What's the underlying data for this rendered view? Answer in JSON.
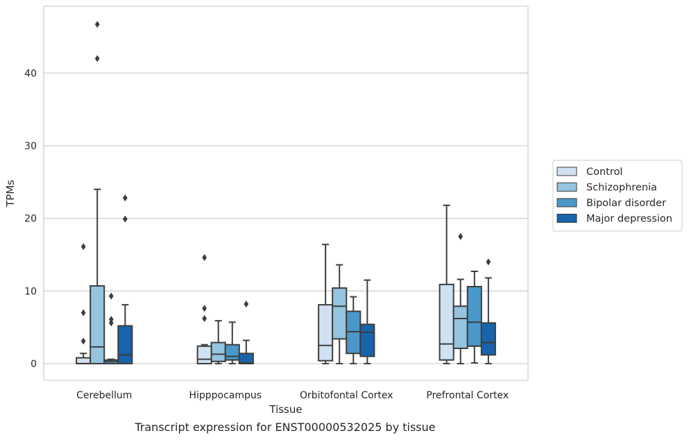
{
  "chart_data": {
    "type": "box",
    "xlabel": "Tissue",
    "ylabel": "TPMs",
    "caption": "Transcript expression for ENST00000532025 by tissue",
    "ylim": [
      -2.3,
      49.2
    ],
    "yticks": [
      0,
      10,
      20,
      30,
      40
    ],
    "grid": "horizontal",
    "legend_position": "right",
    "categories": [
      "Cerebellum",
      "Hipppocampus",
      "Orbitofontal Cortex",
      "Prefrontal Cortex"
    ],
    "series": [
      {
        "name": "Control",
        "color": "#d0e1f2",
        "boxes": [
          {
            "whislo": 0,
            "q1": 0,
            "med": 0,
            "q3": 0.8,
            "whishi": 1.4,
            "fliers": [
              3.1,
              7.0,
              16.1
            ]
          },
          {
            "whislo": 0,
            "q1": 0,
            "med": 0.6,
            "q3": 2.4,
            "whishi": 2.6,
            "fliers": [
              6.2,
              7.6,
              14.6
            ]
          },
          {
            "whislo": 0,
            "q1": 0.4,
            "med": 2.5,
            "q3": 8.1,
            "whishi": 16.4,
            "fliers": []
          },
          {
            "whislo": 0,
            "q1": 0.5,
            "med": 2.7,
            "q3": 10.9,
            "whishi": 21.8,
            "fliers": []
          }
        ]
      },
      {
        "name": "Schizophrenia",
        "color": "#94c4df",
        "boxes": [
          {
            "whislo": 0,
            "q1": 0,
            "med": 2.3,
            "q3": 10.7,
            "whishi": 24.0,
            "fliers": [
              42.0,
              46.7
            ]
          },
          {
            "whislo": 0,
            "q1": 0.3,
            "med": 1.3,
            "q3": 2.9,
            "whishi": 5.9,
            "fliers": []
          },
          {
            "whislo": 0,
            "q1": 3.4,
            "med": 7.9,
            "q3": 10.4,
            "whishi": 13.6,
            "fliers": []
          },
          {
            "whislo": 0,
            "q1": 2.1,
            "med": 6.2,
            "q3": 7.9,
            "whishi": 11.6,
            "fliers": [
              17.5
            ]
          }
        ]
      },
      {
        "name": "Bipolar disorder",
        "color": "#4a98c9",
        "boxes": [
          {
            "whislo": 0,
            "q1": 0,
            "med": 0.3,
            "q3": 0.5,
            "whishi": 0.6,
            "fliers": [
              5.6,
              6.1,
              9.3
            ]
          },
          {
            "whislo": 0,
            "q1": 0.5,
            "med": 1.0,
            "q3": 2.6,
            "whishi": 5.7,
            "fliers": []
          },
          {
            "whislo": 0,
            "q1": 1.4,
            "med": 4.4,
            "q3": 7.2,
            "whishi": 9.2,
            "fliers": []
          },
          {
            "whislo": 0.1,
            "q1": 2.4,
            "med": 5.7,
            "q3": 10.6,
            "whishi": 12.7,
            "fliers": []
          }
        ]
      },
      {
        "name": "Major depression",
        "color": "#1764ab",
        "boxes": [
          {
            "whislo": 0,
            "q1": 0,
            "med": 1.2,
            "q3": 5.2,
            "whishi": 8.1,
            "fliers": [
              19.9,
              22.8
            ]
          },
          {
            "whislo": 0,
            "q1": 0,
            "med": 0.1,
            "q3": 1.4,
            "whishi": 3.2,
            "fliers": [
              8.2
            ]
          },
          {
            "whislo": 0,
            "q1": 1.0,
            "med": 4.3,
            "q3": 5.4,
            "whishi": 11.5,
            "fliers": []
          },
          {
            "whislo": 0,
            "q1": 1.2,
            "med": 2.9,
            "q3": 5.6,
            "whishi": 11.8,
            "fliers": [
              14.0
            ]
          }
        ]
      }
    ]
  }
}
